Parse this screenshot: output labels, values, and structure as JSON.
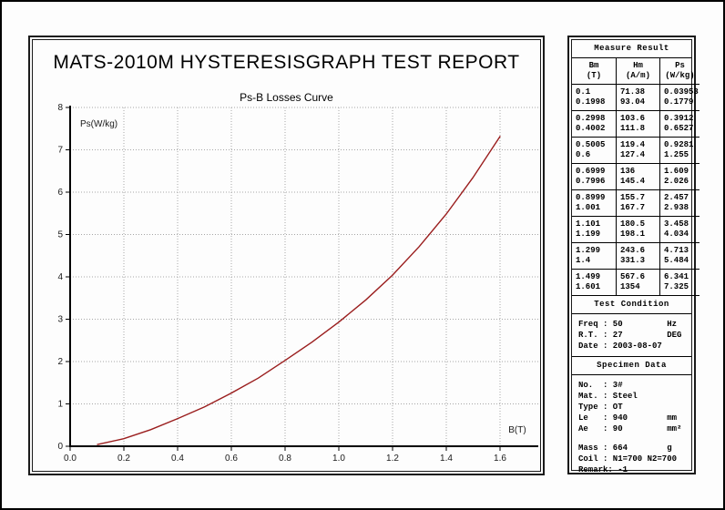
{
  "report": {
    "title": "MATS-2010M HYSTERESISGRAPH TEST REPORT",
    "subtitle": "Ps-B Losses Curve"
  },
  "chart_data": {
    "type": "line",
    "title": "Ps-B Losses Curve",
    "xlabel": "B(T)",
    "ylabel": "Ps(W/kg)",
    "xlim": [
      0,
      1.74
    ],
    "ylim": [
      0,
      8
    ],
    "x_ticks": [
      0.0,
      0.2,
      0.4,
      0.6,
      0.8,
      1.0,
      1.2,
      1.4,
      1.6
    ],
    "y_ticks": [
      0,
      1,
      2,
      3,
      4,
      5,
      6,
      7,
      8
    ],
    "grid": true,
    "legend": false,
    "line_color": "#9a1d1d",
    "series": [
      {
        "name": "Ps-B Losses",
        "x": [
          0.1,
          0.1998,
          0.2998,
          0.4002,
          0.5005,
          0.6,
          0.6999,
          0.7996,
          0.8999,
          1.001,
          1.101,
          1.199,
          1.299,
          1.4,
          1.499,
          1.601
        ],
        "y": [
          0.03953,
          0.1779,
          0.3912,
          0.6527,
          0.9281,
          1.255,
          1.609,
          2.026,
          2.457,
          2.938,
          3.458,
          4.034,
          4.713,
          5.484,
          6.341,
          7.325
        ]
      }
    ]
  },
  "panel": {
    "measure_result": {
      "title": "Measure Result",
      "columns": [
        {
          "name": "Bm",
          "unit": "(T)"
        },
        {
          "name": "Hm",
          "unit": "(A/m)"
        },
        {
          "name": "Ps",
          "unit": "(W/kg)"
        }
      ],
      "row_groups": [
        [
          [
            "0.1",
            "71.38",
            "0.03953"
          ],
          [
            "0.1998",
            "93.04",
            "0.1779"
          ]
        ],
        [
          [
            "0.2998",
            "103.6",
            "0.3912"
          ],
          [
            "0.4002",
            "111.8",
            "0.6527"
          ]
        ],
        [
          [
            "0.5005",
            "119.4",
            "0.9281"
          ],
          [
            "0.6",
            "127.4",
            "1.255"
          ]
        ],
        [
          [
            "0.6999",
            "136",
            "1.609"
          ],
          [
            "0.7996",
            "145.4",
            "2.026"
          ]
        ],
        [
          [
            "0.8999",
            "155.7",
            "2.457"
          ],
          [
            "1.001",
            "167.7",
            "2.938"
          ]
        ],
        [
          [
            "1.101",
            "180.5",
            "3.458"
          ],
          [
            "1.199",
            "198.1",
            "4.034"
          ]
        ],
        [
          [
            "1.299",
            "243.6",
            "4.713"
          ],
          [
            "1.4",
            "331.3",
            "5.484"
          ]
        ],
        [
          [
            "1.499",
            "567.6",
            "6.341"
          ],
          [
            "1.601",
            "1354",
            "7.325"
          ]
        ]
      ]
    },
    "test_condition": {
      "title": "Test Condition",
      "lines": [
        {
          "label": "Freq",
          "value": "50",
          "unit": "Hz"
        },
        {
          "label": "R.T.",
          "value": "27",
          "unit": "DEG"
        },
        {
          "label": "Date",
          "value": "2003-08-07",
          "unit": ""
        }
      ]
    },
    "specimen_data": {
      "title": "Specimen Data",
      "groups": [
        [
          {
            "label": "No.",
            "value": "3#",
            "unit": ""
          },
          {
            "label": "Mat.",
            "value": "Steel",
            "unit": ""
          },
          {
            "label": "Type",
            "value": "OT",
            "unit": ""
          },
          {
            "label": "Le",
            "value": "940",
            "unit": "mm"
          },
          {
            "label": "Ae",
            "value": "90",
            "unit": "mm²"
          }
        ],
        [
          {
            "label": "Mass",
            "value": "664",
            "unit": "g"
          },
          {
            "label": "Coil",
            "value": "N1=700 N2=700",
            "unit": ""
          },
          {
            "label": "Remark",
            "value": "-1",
            "unit": ""
          }
        ]
      ]
    }
  }
}
